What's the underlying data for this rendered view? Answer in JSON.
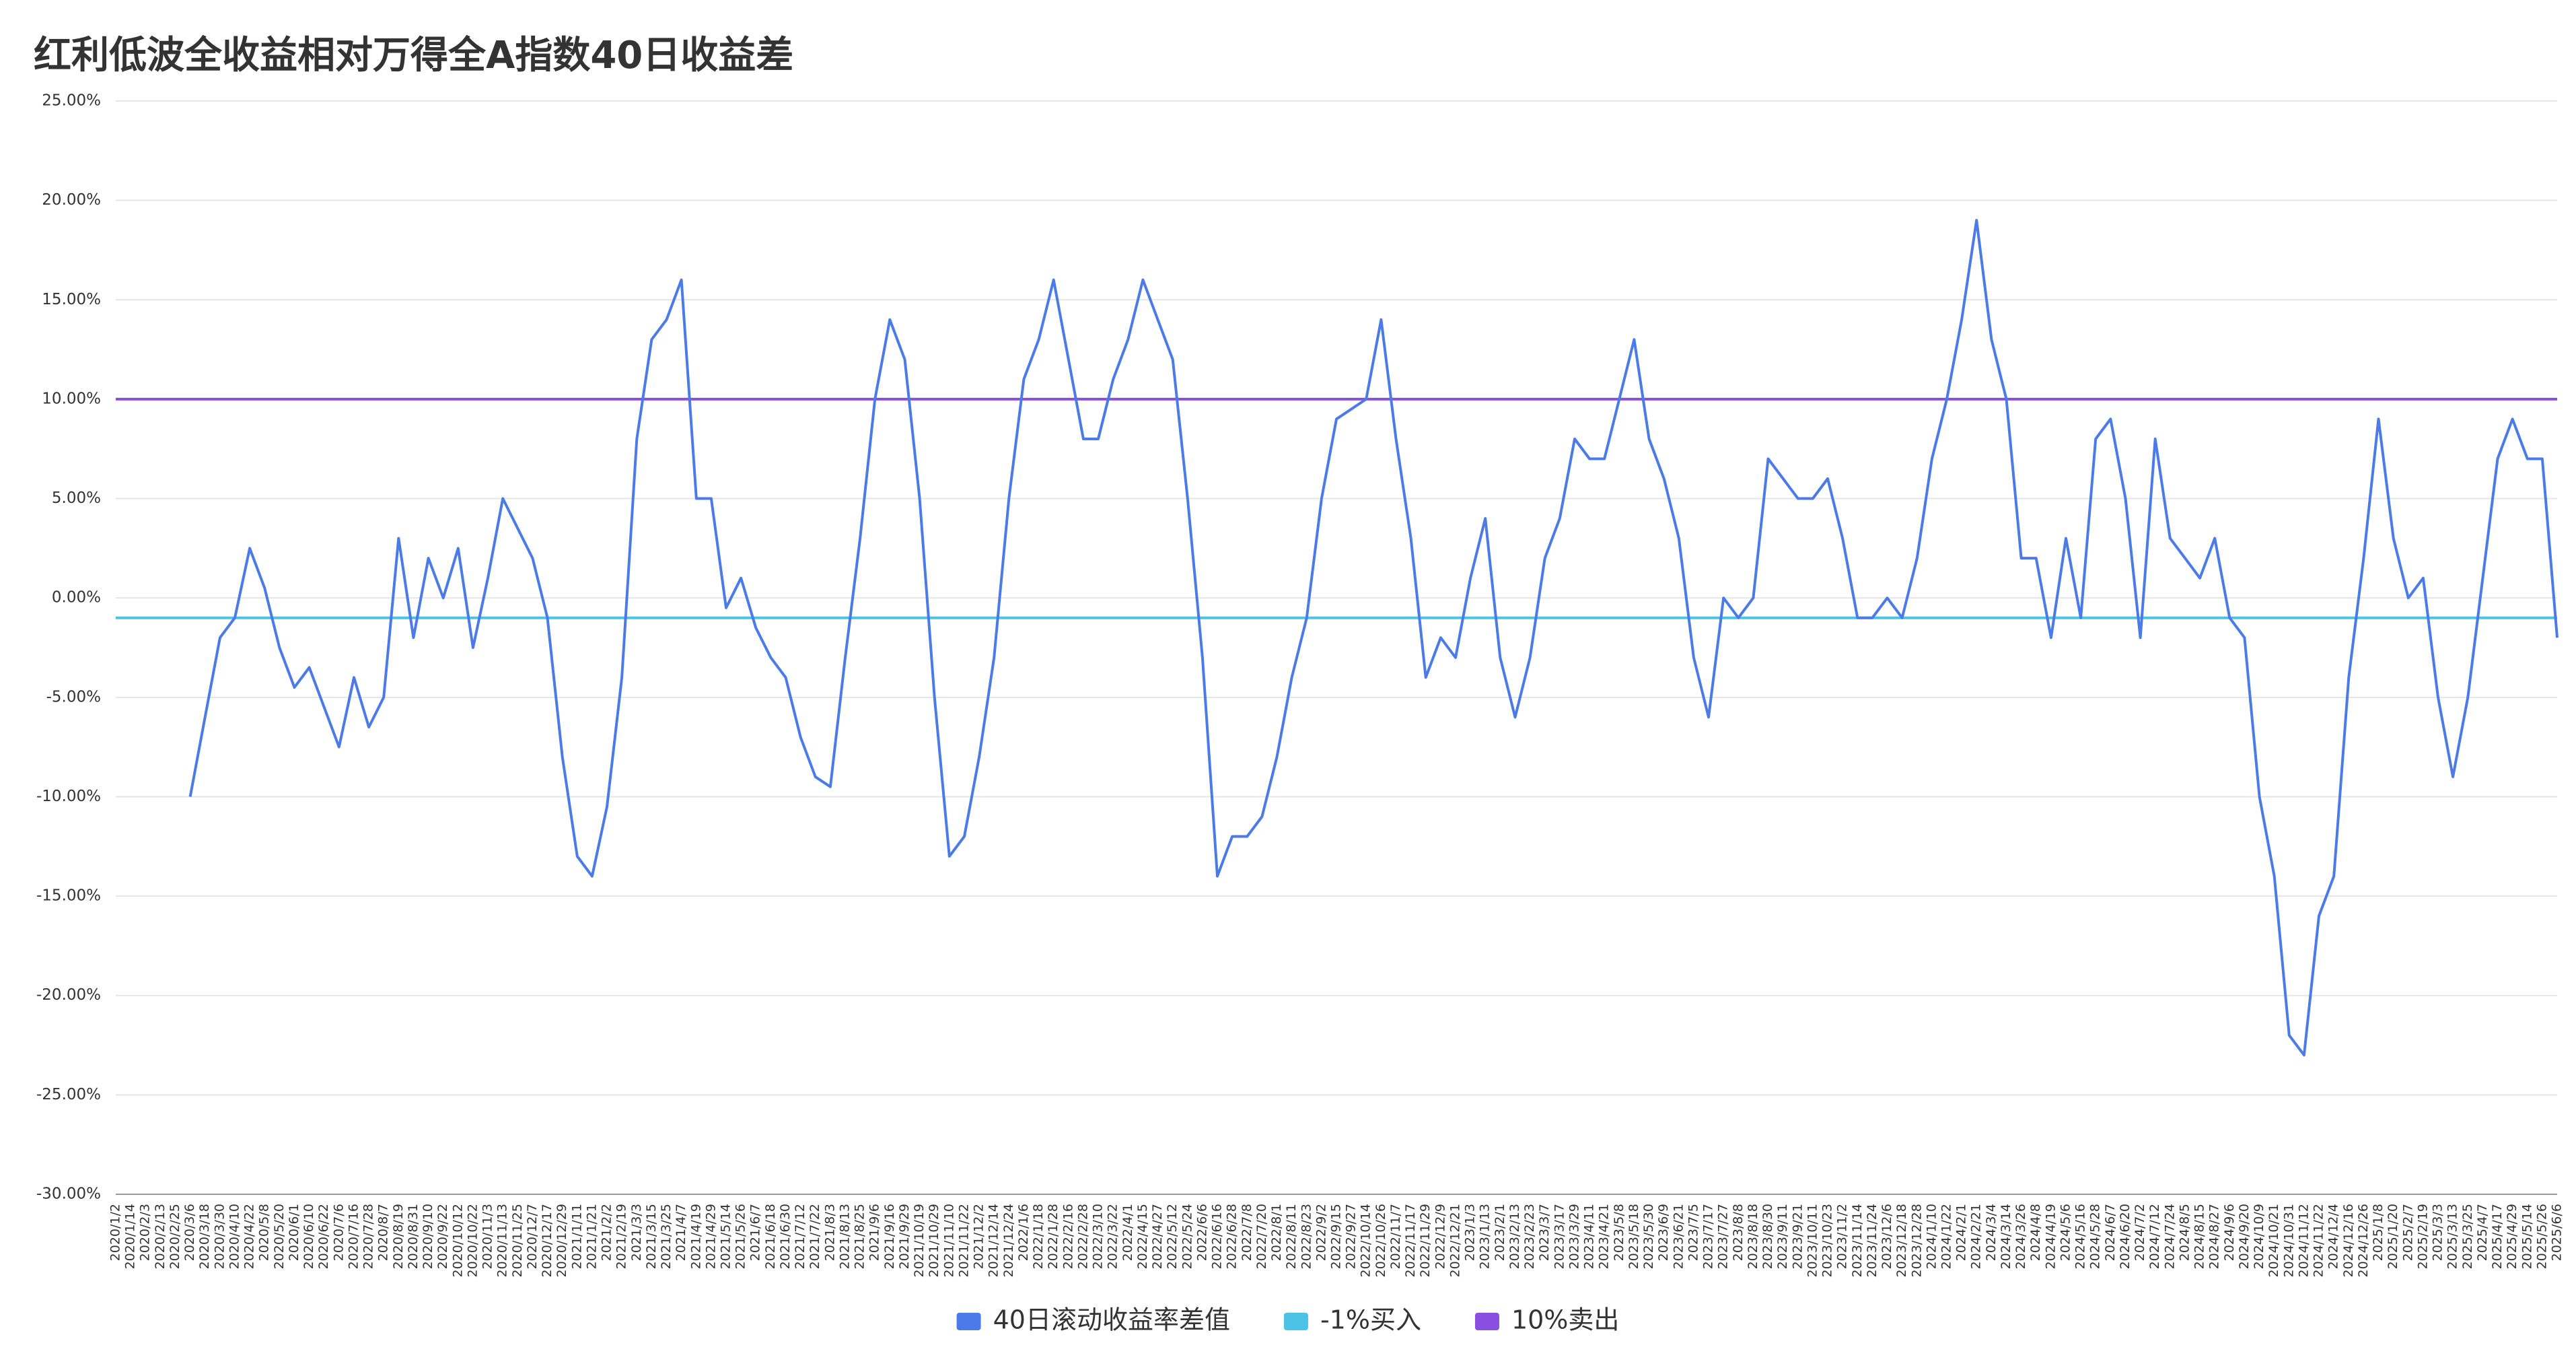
{
  "chart_data": {
    "type": "line",
    "title": "红利低波全收益相对万得全A指数40日收益差",
    "categories": [
      "2020/1/2",
      "2020/1/14",
      "2020/2/3",
      "2020/2/13",
      "2020/2/25",
      "2020/3/6",
      "2020/3/18",
      "2020/3/30",
      "2020/4/10",
      "2020/4/22",
      "2020/5/8",
      "2020/5/20",
      "2020/6/1",
      "2020/6/10",
      "2020/6/22",
      "2020/7/6",
      "2020/7/16",
      "2020/7/28",
      "2020/8/7",
      "2020/8/19",
      "2020/8/31",
      "2020/9/10",
      "2020/9/22",
      "2020/10/12",
      "2020/10/22",
      "2020/11/3",
      "2020/11/13",
      "2020/11/25",
      "2020/12/7",
      "2020/12/17",
      "2020/12/29",
      "2021/1/11",
      "2021/1/21",
      "2021/2/2",
      "2021/2/19",
      "2021/3/3",
      "2021/3/15",
      "2021/3/25",
      "2021/4/7",
      "2021/4/19",
      "2021/4/29",
      "2021/5/14",
      "2021/5/26",
      "2021/6/7",
      "2021/6/18",
      "2021/6/30",
      "2021/7/12",
      "2021/7/22",
      "2021/8/3",
      "2021/8/13",
      "2021/8/25",
      "2021/9/6",
      "2021/9/16",
      "2021/9/29",
      "2021/10/19",
      "2021/10/29",
      "2021/11/10",
      "2021/11/22",
      "2021/12/2",
      "2021/12/14",
      "2021/12/24",
      "2022/1/6",
      "2022/1/18",
      "2022/1/28",
      "2022/2/16",
      "2022/2/28",
      "2022/3/10",
      "2022/3/22",
      "2022/4/1",
      "2022/4/15",
      "2022/4/27",
      "2022/5/12",
      "2022/5/24",
      "2022/6/6",
      "2022/6/16",
      "2022/6/28",
      "2022/7/8",
      "2022/7/20",
      "2022/8/1",
      "2022/8/11",
      "2022/8/23",
      "2022/9/2",
      "2022/9/15",
      "2022/9/27",
      "2022/10/14",
      "2022/10/26",
      "2022/11/7",
      "2022/11/17",
      "2022/11/29",
      "2022/12/9",
      "2022/12/21",
      "2023/1/3",
      "2023/1/13",
      "2023/2/1",
      "2023/2/13",
      "2023/2/23",
      "2023/3/7",
      "2023/3/17",
      "2023/3/29",
      "2023/4/11",
      "2023/4/21",
      "2023/5/8",
      "2023/5/18",
      "2023/5/30",
      "2023/6/9",
      "2023/6/21",
      "2023/7/5",
      "2023/7/17",
      "2023/7/27",
      "2023/8/8",
      "2023/8/18",
      "2023/8/30",
      "2023/9/11",
      "2023/9/21",
      "2023/10/11",
      "2023/10/23",
      "2023/11/2",
      "2023/11/14",
      "2023/11/24",
      "2023/12/6",
      "2023/12/18",
      "2023/12/28",
      "2024/1/10",
      "2024/1/22",
      "2024/2/1",
      "2024/2/21",
      "2024/3/4",
      "2024/3/14",
      "2024/3/26",
      "2024/4/8",
      "2024/4/19",
      "2024/5/6",
      "2024/5/16",
      "2024/5/28",
      "2024/6/7",
      "2024/6/20",
      "2024/7/2",
      "2024/7/12",
      "2024/7/24",
      "2024/8/5",
      "2024/8/15",
      "2024/8/27",
      "2024/9/6",
      "2024/9/20",
      "2024/10/9",
      "2024/10/21",
      "2024/10/31",
      "2024/11/12",
      "2024/11/22",
      "2024/12/4",
      "2024/12/16",
      "2024/12/26",
      "2025/1/8",
      "2025/1/20",
      "2025/2/7",
      "2025/2/19",
      "2025/3/3",
      "2025/3/13",
      "2025/3/25",
      "2025/4/7",
      "2025/4/17",
      "2025/4/29",
      "2025/5/14",
      "2025/5/26",
      "2025/6/6"
    ],
    "series": [
      {
        "name": "40日滚动收益率差值",
        "color": "#4a7be8",
        "values": [
          null,
          null,
          null,
          null,
          null,
          -10,
          -6,
          -2,
          -1,
          2.5,
          0.5,
          -2.5,
          -4.5,
          -3.5,
          -5.5,
          -7.5,
          -4,
          -6.5,
          -5,
          3,
          -2,
          2,
          0,
          2.5,
          -2.5,
          1,
          5,
          3.5,
          2,
          -1,
          -8,
          -13,
          -14,
          -10.5,
          -4,
          8,
          13,
          14,
          16,
          5,
          5,
          -0.5,
          1,
          -1.5,
          -3,
          -4,
          -7,
          -9,
          -9.5,
          -3,
          3,
          10,
          14,
          12,
          5,
          -5,
          -13,
          -12,
          -8,
          -3,
          5,
          11,
          13,
          16,
          12,
          8,
          8,
          11,
          13,
          16,
          14,
          12,
          5,
          -3,
          -14,
          -12,
          -12,
          -11,
          -8,
          -4,
          -1,
          5,
          9,
          9.5,
          10,
          14,
          8,
          3,
          -4,
          -2,
          -3,
          1,
          4,
          -3,
          -6,
          -3,
          2,
          4,
          8,
          7,
          7,
          10,
          13,
          8,
          6,
          3,
          -3,
          -6,
          0,
          -1,
          0,
          7,
          6,
          5,
          5,
          6,
          3,
          -1,
          -1,
          0,
          -1,
          2,
          7,
          10,
          14,
          19,
          13,
          10,
          2,
          2,
          -2,
          3,
          -1,
          8,
          9,
          5,
          -2,
          8,
          3,
          2,
          1,
          3,
          -1,
          -2,
          -10,
          -14,
          -22,
          -23,
          -16,
          -14,
          -4,
          2,
          9,
          3,
          0,
          1,
          -5,
          -9,
          -5,
          1,
          7,
          9,
          7,
          7,
          -2
        ]
      }
    ],
    "reference_lines": [
      {
        "name": "-1%买入",
        "color": "#4cc3e6",
        "value": -1
      },
      {
        "name": "10%卖出",
        "color": "#8a4fe0",
        "value": 10
      }
    ],
    "ylim": [
      -30,
      25
    ],
    "yticks": [
      {
        "value": 25,
        "label": "25.00%"
      },
      {
        "value": 20,
        "label": "20.00%"
      },
      {
        "value": 15,
        "label": "15.00%"
      },
      {
        "value": 10,
        "label": "10.00%"
      },
      {
        "value": 5,
        "label": "5.00%"
      },
      {
        "value": 0,
        "label": "0.00%"
      },
      {
        "value": -5,
        "label": "-5.00%"
      },
      {
        "value": -10,
        "label": "-10.00%"
      },
      {
        "value": -15,
        "label": "-15.00%"
      },
      {
        "value": -20,
        "label": "-20.00%"
      },
      {
        "value": -25,
        "label": "-25.00%"
      },
      {
        "value": -30,
        "label": "-30.00%"
      }
    ],
    "grid": true,
    "legend": "bottom"
  }
}
